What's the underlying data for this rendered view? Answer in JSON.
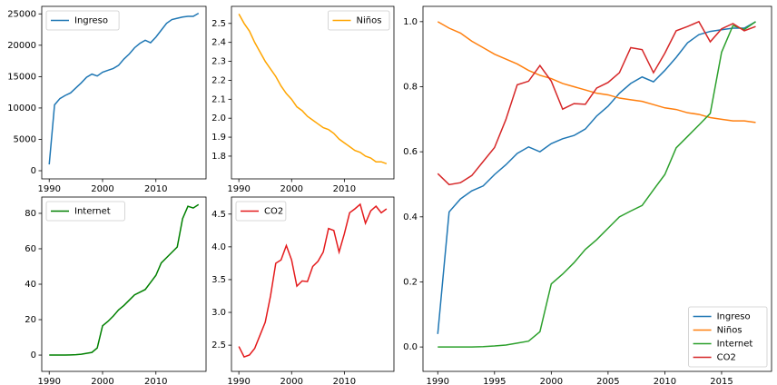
{
  "chart_data": [
    {
      "type": "line",
      "x": [
        1990,
        1991,
        1992,
        1993,
        1994,
        1995,
        1996,
        1997,
        1998,
        1999,
        2000,
        2001,
        2002,
        2003,
        2004,
        2005,
        2006,
        2007,
        2008,
        2009,
        2010,
        2011,
        2012,
        2013,
        2014,
        2015,
        2016,
        2017,
        2018
      ],
      "series": [
        {
          "name": "Ingreso",
          "color": "#1f77b4",
          "values": [
            1000,
            10500,
            11500,
            12000,
            12400,
            13200,
            14000,
            14900,
            15400,
            15100,
            15700,
            16000,
            16300,
            16800,
            17800,
            18600,
            19600,
            20300,
            20800,
            20400,
            21300,
            22400,
            23500,
            24100,
            24300,
            24500,
            24600,
            24600,
            25100
          ]
        }
      ],
      "xlim": [
        1988.6,
        2019.4
      ],
      "ylim": [
        -1300,
        26200
      ],
      "xticks": [
        1990,
        2000,
        2010
      ],
      "yticks": [
        0,
        5000,
        10000,
        15000,
        20000,
        25000
      ],
      "legend": "upper left"
    },
    {
      "type": "line",
      "x": [
        1990,
        1991,
        1992,
        1993,
        1994,
        1995,
        1996,
        1997,
        1998,
        1999,
        2000,
        2001,
        2002,
        2003,
        2004,
        2005,
        2006,
        2007,
        2008,
        2009,
        2010,
        2011,
        2012,
        2013,
        2014,
        2015,
        2016,
        2017,
        2018
      ],
      "series": [
        {
          "name": "Niños",
          "color": "#ffa500",
          "values": [
            2.55,
            2.5,
            2.46,
            2.4,
            2.35,
            2.3,
            2.26,
            2.22,
            2.17,
            2.13,
            2.1,
            2.06,
            2.04,
            2.01,
            1.99,
            1.97,
            1.95,
            1.94,
            1.92,
            1.89,
            1.87,
            1.85,
            1.83,
            1.82,
            1.8,
            1.79,
            1.77,
            1.77,
            1.76
          ]
        }
      ],
      "xlim": [
        1988.6,
        2019.4
      ],
      "ylim": [
        1.68,
        2.59
      ],
      "xticks": [
        1990,
        2000,
        2010
      ],
      "yticks": [
        1.8,
        1.9,
        {
          "value": 2,
          "label": "2.0"
        },
        2.1,
        2.2,
        2.3,
        2.4,
        2.5
      ],
      "legend": "upper right"
    },
    {
      "type": "line",
      "x": [
        1990,
        1991,
        1992,
        1993,
        1994,
        1995,
        1996,
        1997,
        1998,
        1999,
        2000,
        2001,
        2002,
        2003,
        2004,
        2005,
        2006,
        2007,
        2008,
        2009,
        2010,
        2011,
        2012,
        2013,
        2014,
        2015,
        2016,
        2017,
        2018
      ],
      "series": [
        {
          "name": "Internet",
          "color": "#008000",
          "values": [
            0,
            0,
            0,
            0,
            0.1,
            0.2,
            0.5,
            1,
            1.5,
            4,
            16.5,
            19,
            22,
            25.5,
            28,
            31,
            34,
            35.5,
            37,
            41,
            45,
            52,
            55,
            58,
            61,
            77,
            84,
            83,
            85
          ]
        }
      ],
      "xlim": [
        1988.6,
        2019.4
      ],
      "ylim": [
        -9.2,
        89.2
      ],
      "xticks": [
        1990,
        2000,
        2010
      ],
      "yticks": [
        0,
        20,
        40,
        60,
        80
      ],
      "legend": "upper left"
    },
    {
      "type": "line",
      "x": [
        1990,
        1991,
        1992,
        1993,
        1994,
        1995,
        1996,
        1997,
        1998,
        1999,
        2000,
        2001,
        2002,
        2003,
        2004,
        2005,
        2006,
        2007,
        2008,
        2009,
        2010,
        2011,
        2012,
        2013,
        2014,
        2015,
        2016,
        2017,
        2018
      ],
      "series": [
        {
          "name": "CO2",
          "color": "#e41a1c",
          "values": [
            2.48,
            2.32,
            2.35,
            2.45,
            2.65,
            2.85,
            3.25,
            3.75,
            3.8,
            4.02,
            3.8,
            3.4,
            3.48,
            3.47,
            3.7,
            3.78,
            3.92,
            4.28,
            4.25,
            3.92,
            4.2,
            4.52,
            4.58,
            4.65,
            4.36,
            4.55,
            4.62,
            4.52,
            4.58
          ]
        }
      ],
      "xlim": [
        1988.6,
        2019.4
      ],
      "ylim": [
        2.1,
        4.76
      ],
      "xticks": [
        1990,
        2000,
        2010
      ],
      "yticks": [
        2.5,
        {
          "value": 3,
          "label": "3.0"
        },
        3.5,
        {
          "value": 4,
          "label": "4.0"
        },
        4.5
      ],
      "legend": "upper left"
    },
    {
      "type": "line",
      "x": [
        1990,
        1991,
        1992,
        1993,
        1994,
        1995,
        1996,
        1997,
        1998,
        1999,
        2000,
        2001,
        2002,
        2003,
        2004,
        2005,
        2006,
        2007,
        2008,
        2009,
        2010,
        2011,
        2012,
        2013,
        2014,
        2015,
        2016,
        2017,
        2018
      ],
      "series": [
        {
          "name": "Ingreso",
          "color": "#1f77b4",
          "values": [
            0.04,
            0.415,
            0.455,
            0.48,
            0.495,
            0.53,
            0.56,
            0.595,
            0.615,
            0.6,
            0.625,
            0.64,
            0.65,
            0.67,
            0.71,
            0.74,
            0.78,
            0.81,
            0.83,
            0.815,
            0.85,
            0.89,
            0.935,
            0.96,
            0.97,
            0.975,
            0.98,
            0.98,
            1.0
          ]
        },
        {
          "name": "Niños",
          "color": "#ff7f0e",
          "values": [
            1.0,
            0.98,
            0.965,
            0.94,
            0.92,
            0.9,
            0.885,
            0.87,
            0.85,
            0.835,
            0.825,
            0.81,
            0.8,
            0.79,
            0.78,
            0.775,
            0.765,
            0.76,
            0.755,
            0.745,
            0.735,
            0.73,
            0.72,
            0.715,
            0.705,
            0.7,
            0.695,
            0.695,
            0.69
          ]
        },
        {
          "name": "Internet",
          "color": "#2ca02c",
          "values": [
            0,
            0,
            0,
            0,
            0.001,
            0.003,
            0.006,
            0.012,
            0.018,
            0.047,
            0.194,
            0.224,
            0.259,
            0.3,
            0.33,
            0.365,
            0.4,
            0.418,
            0.435,
            0.483,
            0.53,
            0.612,
            0.647,
            0.682,
            0.718,
            0.906,
            0.988,
            0.976,
            1.0
          ]
        },
        {
          "name": "CO2",
          "color": "#d62728",
          "values": [
            0.533,
            0.499,
            0.505,
            0.527,
            0.57,
            0.613,
            0.699,
            0.806,
            0.817,
            0.865,
            0.817,
            0.731,
            0.748,
            0.746,
            0.796,
            0.813,
            0.843,
            0.92,
            0.914,
            0.843,
            0.903,
            0.972,
            0.985,
            1.0,
            0.938,
            0.978,
            0.994,
            0.972,
            0.985
          ]
        }
      ],
      "xlim": [
        1988.7,
        2019.4
      ],
      "ylim": [
        -0.075,
        1.047
      ],
      "xticks": [
        1990,
        1995,
        2000,
        2005,
        2010,
        2015
      ],
      "yticks": [
        {
          "value": 0,
          "label": "0.0"
        },
        0.2,
        0.4,
        0.6,
        0.8,
        {
          "value": 1,
          "label": "1.0"
        }
      ],
      "legend": "lower right"
    }
  ]
}
